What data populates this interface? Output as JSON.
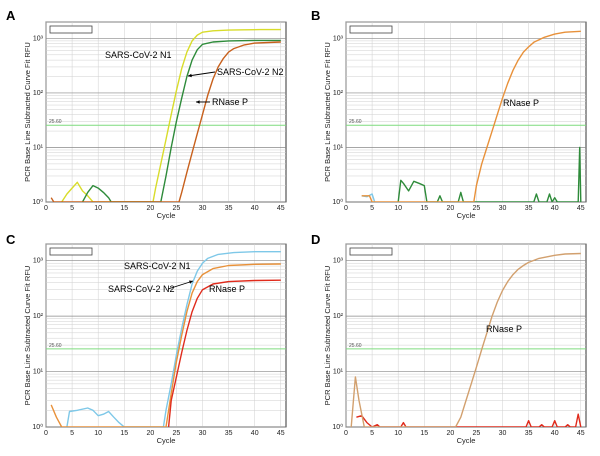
{
  "chart_data": [
    {
      "panel": "A",
      "type": "line",
      "ylabel": "PCR Base Line Subtracted Curve Fit RFU",
      "xlabel": "Cycle",
      "xlim": [
        0,
        46
      ],
      "x_ticks": [
        "0",
        "5",
        "10",
        "15",
        "20",
        "25",
        "30",
        "35",
        "40",
        "45"
      ],
      "y_scale": "log",
      "y_ticks": [
        "10⁰",
        "10¹",
        "10²",
        "10³"
      ],
      "ylim": [
        1,
        2000
      ],
      "threshold": {
        "value": 25.6,
        "label": "25.60",
        "color": "#7fdc7f"
      },
      "grid": true,
      "series": [
        {
          "name": "SARS-CoV-2 N1",
          "color": "#d8dc2a",
          "points": [
            [
              3,
              1
            ],
            [
              4,
              1.4
            ],
            [
              5,
              1.8
            ],
            [
              6,
              2.3
            ],
            [
              7,
              1.6
            ],
            [
              8,
              1.3
            ],
            [
              9,
              1
            ],
            [
              20.5,
              1
            ],
            [
              21,
              1.8
            ],
            [
              22,
              5
            ],
            [
              23,
              14
            ],
            [
              24,
              40
            ],
            [
              25,
              110
            ],
            [
              26,
              280
            ],
            [
              27,
              560
            ],
            [
              28,
              900
            ],
            [
              29,
              1150
            ],
            [
              30,
              1300
            ],
            [
              32,
              1380
            ],
            [
              35,
              1420
            ],
            [
              38,
              1440
            ],
            [
              41,
              1450
            ],
            [
              45,
              1450
            ]
          ]
        },
        {
          "name": "SARS-CoV-2 N2",
          "color": "#2e8b3a",
          "points": [
            [
              7,
              1
            ],
            [
              8,
              1.5
            ],
            [
              9,
              2
            ],
            [
              10,
              1.8
            ],
            [
              11,
              1.5
            ],
            [
              12,
              1.2
            ],
            [
              12.5,
              1
            ],
            [
              22,
              1
            ],
            [
              23,
              3
            ],
            [
              24,
              10
            ],
            [
              25,
              30
            ],
            [
              26,
              80
            ],
            [
              27,
              200
            ],
            [
              28,
              400
            ],
            [
              29,
              620
            ],
            [
              30,
              780
            ],
            [
              32,
              860
            ],
            [
              35,
              900
            ],
            [
              40,
              920
            ],
            [
              45,
              920
            ]
          ]
        },
        {
          "name": "RNase P",
          "color": "#c8601c",
          "points": [
            [
              1,
              1.2
            ],
            [
              1.5,
              1
            ],
            [
              25.5,
              1
            ],
            [
              26,
              1.5
            ],
            [
              27,
              3.5
            ],
            [
              28,
              8
            ],
            [
              29,
              18
            ],
            [
              30,
              40
            ],
            [
              31,
              90
            ],
            [
              32,
              180
            ],
            [
              33,
              300
            ],
            [
              34,
              430
            ],
            [
              35,
              560
            ],
            [
              36,
              650
            ],
            [
              38,
              760
            ],
            [
              40,
              820
            ],
            [
              45,
              860
            ]
          ]
        }
      ],
      "annotations": [
        {
          "text": "SARS-CoV-2 N1"
        },
        {
          "text": "SARS-CoV-2 N2"
        },
        {
          "text": "RNase P"
        }
      ]
    },
    {
      "panel": "B",
      "type": "line",
      "ylabel": "PCR Base Line Subtracted Curve Fit RFU",
      "xlabel": "Cycle",
      "xlim": [
        0,
        46
      ],
      "x_ticks": [
        "0",
        "5",
        "10",
        "15",
        "20",
        "25",
        "30",
        "35",
        "40",
        "45"
      ],
      "y_scale": "log",
      "y_ticks": [
        "10⁰",
        "10¹",
        "10²",
        "10³"
      ],
      "ylim": [
        1,
        2000
      ],
      "threshold": {
        "value": 25.6,
        "label": "25.60",
        "color": "#7fdc7f"
      },
      "grid": true,
      "series": [
        {
          "name": "",
          "color": "#7ec8e8",
          "points": [
            [
              3,
              1.3
            ],
            [
              4,
              1.25
            ],
            [
              5,
              1.4
            ],
            [
              5.5,
              1
            ]
          ]
        },
        {
          "name": "",
          "color": "#2e8b3a",
          "points": [
            [
              10,
              1
            ],
            [
              10.5,
              2.5
            ],
            [
              11,
              2.2
            ],
            [
              12,
              1.6
            ],
            [
              13,
              2.4
            ],
            [
              14,
              2.2
            ],
            [
              15,
              2
            ],
            [
              15.5,
              1
            ],
            [
              17.5,
              1
            ],
            [
              18,
              1.3
            ],
            [
              18.5,
              1
            ],
            [
              21.5,
              1
            ],
            [
              22,
              1.5
            ],
            [
              22.5,
              1
            ],
            [
              36,
              1
            ],
            [
              36.5,
              1.4
            ],
            [
              37,
              1
            ],
            [
              38.5,
              1
            ],
            [
              39,
              1.4
            ],
            [
              39.5,
              1
            ],
            [
              40,
              1.2
            ],
            [
              40.5,
              1
            ],
            [
              44.5,
              1
            ],
            [
              44.8,
              10
            ],
            [
              45,
              1
            ]
          ]
        },
        {
          "name": "RNase P",
          "color": "#e8913a",
          "points": [
            [
              3,
              1.3
            ],
            [
              4.5,
              1.3
            ],
            [
              5,
              1
            ],
            [
              24.5,
              1
            ],
            [
              25,
              2
            ],
            [
              26,
              5
            ],
            [
              27,
              10
            ],
            [
              28,
              20
            ],
            [
              29,
              40
            ],
            [
              30,
              80
            ],
            [
              31,
              150
            ],
            [
              32,
              260
            ],
            [
              33,
              400
            ],
            [
              34,
              560
            ],
            [
              35,
              700
            ],
            [
              36,
              850
            ],
            [
              38,
              1050
            ],
            [
              40,
              1200
            ],
            [
              42,
              1300
            ],
            [
              45,
              1350
            ]
          ]
        }
      ],
      "annotations": [
        {
          "text": "RNase P"
        }
      ]
    },
    {
      "panel": "C",
      "type": "line",
      "ylabel": "PCR Base Line Subtracted Curve Fit RFU",
      "xlabel": "Cycle",
      "xlim": [
        0,
        46
      ],
      "x_ticks": [
        "0",
        "5",
        "10",
        "15",
        "20",
        "25",
        "30",
        "35",
        "40",
        "45"
      ],
      "y_scale": "log",
      "y_ticks": [
        "10⁰",
        "10¹",
        "10²",
        "10³"
      ],
      "ylim": [
        1,
        2000
      ],
      "threshold": {
        "value": 25.6,
        "label": "25.60",
        "color": "#7fdc7f"
      },
      "grid": true,
      "series": [
        {
          "name": "SARS-CoV-2 N1",
          "color": "#7ec8e8",
          "points": [
            [
              4,
              1
            ],
            [
              4.5,
              1.9
            ],
            [
              6,
              2
            ],
            [
              8,
              2.2
            ],
            [
              9,
              2
            ],
            [
              10,
              1.6
            ],
            [
              11,
              1.7
            ],
            [
              12,
              1.9
            ],
            [
              13,
              1.5
            ],
            [
              14,
              1.2
            ],
            [
              15,
              1
            ],
            [
              22.5,
              1
            ],
            [
              23,
              2
            ],
            [
              24,
              6
            ],
            [
              25,
              20
            ],
            [
              26,
              60
            ],
            [
              27,
              160
            ],
            [
              28,
              380
            ],
            [
              29,
              650
            ],
            [
              30,
              900
            ],
            [
              31,
              1100
            ],
            [
              33,
              1300
            ],
            [
              36,
              1400
            ],
            [
              40,
              1450
            ],
            [
              45,
              1450
            ]
          ]
        },
        {
          "name": "SARS-CoV-2 N2",
          "color": "#e8913a",
          "points": [
            [
              1,
              2.5
            ],
            [
              2,
              1.5
            ],
            [
              3,
              1
            ],
            [
              23,
              1
            ],
            [
              24,
              4
            ],
            [
              25,
              15
            ],
            [
              26,
              45
            ],
            [
              27,
              120
            ],
            [
              28,
              260
            ],
            [
              29,
              420
            ],
            [
              30,
              560
            ],
            [
              32,
              720
            ],
            [
              35,
              820
            ],
            [
              40,
              860
            ],
            [
              45,
              870
            ]
          ]
        },
        {
          "name": "RNase P",
          "color": "#e02b1c",
          "points": [
            [
              23.5,
              1
            ],
            [
              24,
              3
            ],
            [
              25,
              8
            ],
            [
              26,
              22
            ],
            [
              27,
              55
            ],
            [
              28,
              120
            ],
            [
              29,
              210
            ],
            [
              30,
              300
            ],
            [
              32,
              380
            ],
            [
              35,
              420
            ],
            [
              40,
              440
            ],
            [
              45,
              445
            ]
          ]
        }
      ],
      "annotations": [
        {
          "text": "SARS-CoV-2 N1"
        },
        {
          "text": "SARS-CoV-2 N2"
        },
        {
          "text": "RNase P"
        }
      ]
    },
    {
      "panel": "D",
      "type": "line",
      "ylabel": "PCR Base Line Subtracted Curve Fit RFU",
      "xlabel": "Cycle",
      "xlim": [
        0,
        46
      ],
      "x_ticks": [
        "0",
        "5",
        "10",
        "15",
        "20",
        "25",
        "30",
        "35",
        "40",
        "45"
      ],
      "y_scale": "log",
      "y_ticks": [
        "10⁰",
        "10¹",
        "10²",
        "10³"
      ],
      "ylim": [
        1,
        2000
      ],
      "threshold": {
        "value": 25.6,
        "label": "25.60",
        "color": "#7fdc7f"
      },
      "grid": true,
      "series": [
        {
          "name": "",
          "color": "#e02b1c",
          "points": [
            [
              2,
              1.5
            ],
            [
              3,
              1.6
            ],
            [
              4,
              1.2
            ],
            [
              5,
              1
            ],
            [
              6,
              1.1
            ],
            [
              6.5,
              1
            ],
            [
              10.5,
              1
            ],
            [
              11,
              1.2
            ],
            [
              11.5,
              1
            ],
            [
              34.5,
              1
            ],
            [
              35,
              1.3
            ],
            [
              35.5,
              1
            ],
            [
              37,
              1
            ],
            [
              37.5,
              1.1
            ],
            [
              38,
              1
            ],
            [
              39.5,
              1
            ],
            [
              40,
              1.3
            ],
            [
              40.5,
              1
            ],
            [
              42,
              1
            ],
            [
              42.5,
              1.1
            ],
            [
              43,
              1
            ],
            [
              44,
              1
            ],
            [
              44.5,
              1.7
            ],
            [
              45,
              1
            ]
          ]
        },
        {
          "name": "RNase P",
          "color": "#d2a06e",
          "points": [
            [
              1,
              1
            ],
            [
              1.8,
              8
            ],
            [
              2.5,
              3
            ],
            [
              3.5,
              1
            ],
            [
              21,
              1
            ],
            [
              22,
              1.5
            ],
            [
              23,
              3
            ],
            [
              24,
              6
            ],
            [
              25,
              12
            ],
            [
              26,
              25
            ],
            [
              27,
              50
            ],
            [
              28,
              100
            ],
            [
              29,
              180
            ],
            [
              30,
              290
            ],
            [
              31,
              420
            ],
            [
              32,
              560
            ],
            [
              33,
              700
            ],
            [
              34,
              820
            ],
            [
              35,
              930
            ],
            [
              37,
              1100
            ],
            [
              40,
              1250
            ],
            [
              42,
              1320
            ],
            [
              45,
              1350
            ]
          ]
        }
      ],
      "annotations": [
        {
          "text": "RNase P"
        }
      ]
    }
  ]
}
